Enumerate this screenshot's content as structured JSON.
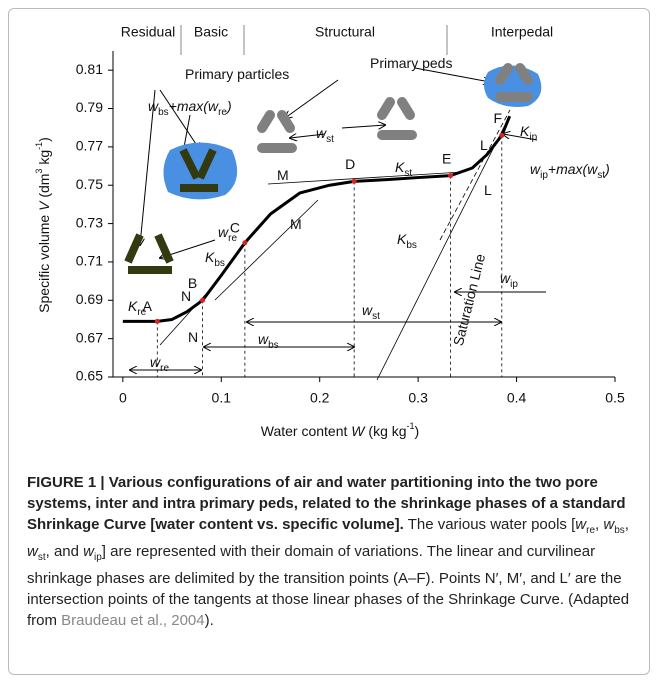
{
  "chart_data": {
    "type": "line",
    "x_label": [
      "Water content ",
      "W",
      " (kg kg",
      "-1",
      ")"
    ],
    "y_label": [
      "Specific volume ",
      "V",
      " (dm",
      "3",
      " kg",
      "-1",
      ")"
    ],
    "phases": [
      "Residual",
      "Basic",
      "Structural",
      "Interpedal"
    ],
    "xlim": [
      -0.01,
      0.5
    ],
    "xticks": [
      0,
      0.1,
      0.2,
      0.3,
      0.4,
      0.5
    ],
    "ylim": [
      0.65,
      0.82
    ],
    "yticks": [
      0.65,
      0.67,
      0.69,
      0.71,
      0.73,
      0.75,
      0.77,
      0.79,
      0.81
    ],
    "series": [
      {
        "color": "#000000",
        "x": [
          0,
          0.02,
          0.035,
          0.05,
          0.065,
          0.081,
          0.1,
          0.124,
          0.15,
          0.18,
          0.21,
          0.235,
          0.27,
          0.3,
          0.333,
          0.355,
          0.37,
          0.385,
          0.393
        ],
        "values": [
          0.679,
          0.679,
          0.679,
          0.68,
          0.684,
          0.69,
          0.703,
          0.72,
          0.735,
          0.746,
          0.75,
          0.752,
          0.753,
          0.754,
          0.755,
          0.759,
          0.766,
          0.776,
          0.786
        ]
      }
    ],
    "points": {
      "color": "#e02020",
      "labels": [
        "A",
        "B",
        "C",
        "D",
        "E",
        "F"
      ],
      "x": [
        0.035,
        0.081,
        0.124,
        0.235,
        0.333,
        0.385
      ],
      "values": [
        0.679,
        0.69,
        0.72,
        0.752,
        0.755,
        0.776
      ]
    },
    "annotations": [
      [
        "Primary particles"
      ],
      [
        "Primary peds"
      ],
      [
        "w",
        "bs",
        "+max(w",
        "re",
        ")"
      ],
      [
        "w",
        "re"
      ],
      [
        "w",
        "st"
      ],
      [
        "K",
        "re"
      ],
      [
        "K",
        "bs"
      ],
      [
        "K",
        "st"
      ],
      [
        "K",
        "ip"
      ],
      [
        "K",
        "bs"
      ],
      [
        "w",
        "ip",
        "+max(w",
        "st",
        ")"
      ],
      [
        "N"
      ],
      [
        "N"
      ],
      [
        "M"
      ],
      [
        "M"
      ],
      [
        "L"
      ],
      [
        "L"
      ],
      [
        "Saturation Line"
      ],
      [
        "w",
        "re"
      ],
      [
        "w",
        "bs"
      ],
      [
        "w",
        "st"
      ],
      [
        "w",
        "ip"
      ]
    ]
  },
  "caption": {
    "title": "FIGURE 1 | Various configurations of air and water partitioning into the two pore systems, inter and intra primary peds, related to the shrinkage phases of a standard Shrinkage Curve [water content vs. specific volume].",
    "body": [
      "The various water pools [",
      "w",
      "re",
      ", ",
      "w",
      "bs",
      ", ",
      "w",
      "st",
      ", and ",
      "w",
      "ip",
      "] are represented with their domain of variations. The linear and curvilinear shrinkage phases are delimited by the transition points (A–F). Points N′, M′, and L′ are the intersection points of the tangents at those linear phases of the Shrinkage Curve. (Adapted from "
    ],
    "link": "Braudeau et al., 2004",
    "end": ")."
  }
}
